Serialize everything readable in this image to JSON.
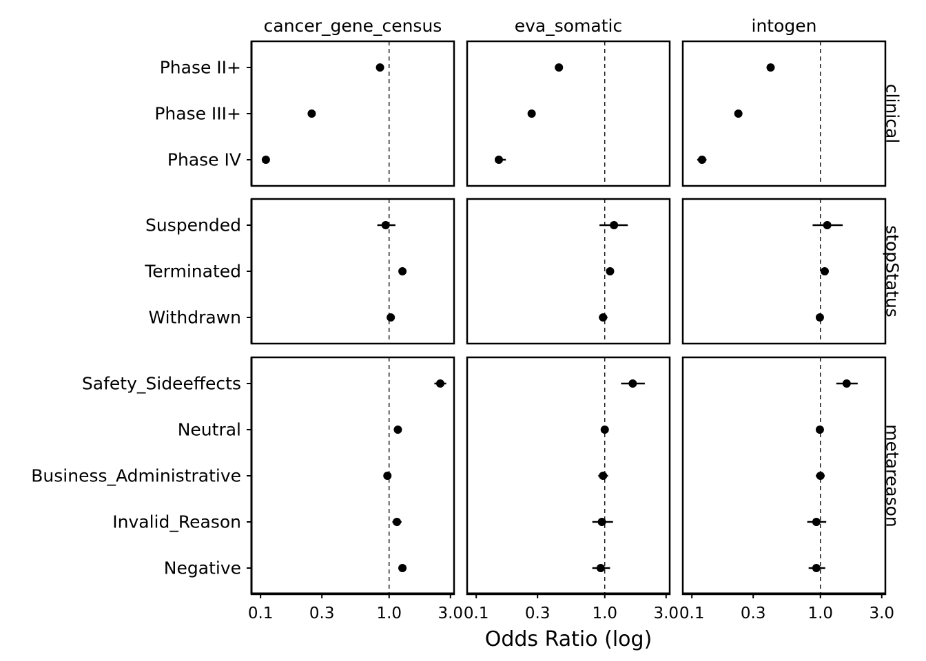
{
  "chart_data": {
    "type": "scatter",
    "subtype": "faceted forest plot (point estimate with confidence interval)",
    "xlabel": "Odds Ratio (log)",
    "x_scale": "log10",
    "xlim": [
      0.085,
      3.2
    ],
    "x_ticks": [
      0.1,
      0.3,
      1.0,
      3.0
    ],
    "x_tick_labels": [
      "0.1",
      "0.3",
      "1.0",
      "3.0"
    ],
    "reference_line": {
      "x": 1.0,
      "style": "dashed"
    },
    "grid": false,
    "point_color": "#000000",
    "columns": [
      "cancer_gene_census",
      "eva_somatic",
      "intogen"
    ],
    "rows": [
      {
        "name": "clinical",
        "categories": [
          "Phase II+",
          "Phase III+",
          "Phase IV"
        ],
        "panels": [
          {
            "column": "cancer_gene_census",
            "points": [
              {
                "category": "Phase II+",
                "or": 0.85,
                "lo": 0.85,
                "hi": 0.85
              },
              {
                "category": "Phase III+",
                "or": 0.25,
                "lo": 0.25,
                "hi": 0.25
              },
              {
                "category": "Phase IV",
                "or": 0.11,
                "lo": 0.11,
                "hi": 0.11
              }
            ]
          },
          {
            "column": "eva_somatic",
            "points": [
              {
                "category": "Phase II+",
                "or": 0.44,
                "lo": 0.44,
                "hi": 0.44
              },
              {
                "category": "Phase III+",
                "or": 0.27,
                "lo": 0.27,
                "hi": 0.27
              },
              {
                "category": "Phase IV",
                "or": 0.15,
                "lo": 0.14,
                "hi": 0.17
              }
            ]
          },
          {
            "column": "intogen",
            "points": [
              {
                "category": "Phase II+",
                "or": 0.41,
                "lo": 0.41,
                "hi": 0.41
              },
              {
                "category": "Phase III+",
                "or": 0.23,
                "lo": 0.23,
                "hi": 0.23
              },
              {
                "category": "Phase IV",
                "or": 0.12,
                "lo": 0.11,
                "hi": 0.13
              }
            ]
          }
        ]
      },
      {
        "name": "stopStatus",
        "categories": [
          "Suspended",
          "Terminated",
          "Withdrawn"
        ],
        "panels": [
          {
            "column": "cancer_gene_census",
            "points": [
              {
                "category": "Suspended",
                "or": 0.94,
                "lo": 0.81,
                "hi": 1.12
              },
              {
                "category": "Terminated",
                "or": 1.27,
                "lo": 1.27,
                "hi": 1.27
              },
              {
                "category": "Withdrawn",
                "or": 1.03,
                "lo": 1.03,
                "hi": 1.03
              }
            ]
          },
          {
            "column": "eva_somatic",
            "points": [
              {
                "category": "Suspended",
                "or": 1.18,
                "lo": 0.91,
                "hi": 1.51
              },
              {
                "category": "Terminated",
                "or": 1.1,
                "lo": 1.1,
                "hi": 1.1
              },
              {
                "category": "Withdrawn",
                "or": 0.97,
                "lo": 0.9,
                "hi": 1.05
              }
            ]
          },
          {
            "column": "intogen",
            "points": [
              {
                "category": "Suspended",
                "or": 1.13,
                "lo": 0.87,
                "hi": 1.49
              },
              {
                "category": "Terminated",
                "or": 1.08,
                "lo": 1.08,
                "hi": 1.08
              },
              {
                "category": "Withdrawn",
                "or": 0.99,
                "lo": 0.92,
                "hi": 1.06
              }
            ]
          }
        ]
      },
      {
        "name": "metareason",
        "categories": [
          "Safety_Sideeffects",
          "Neutral",
          "Business_Administrative",
          "Invalid_Reason",
          "Negative"
        ],
        "panels": [
          {
            "column": "cancer_gene_census",
            "points": [
              {
                "category": "Safety_Sideeffects",
                "or": 2.5,
                "lo": 2.25,
                "hi": 2.78
              },
              {
                "category": "Neutral",
                "or": 1.17,
                "lo": 1.17,
                "hi": 1.17
              },
              {
                "category": "Business_Administrative",
                "or": 0.97,
                "lo": 0.97,
                "hi": 0.97
              },
              {
                "category": "Invalid_Reason",
                "or": 1.15,
                "lo": 1.06,
                "hi": 1.25
              },
              {
                "category": "Negative",
                "or": 1.27,
                "lo": 1.18,
                "hi": 1.36
              }
            ]
          },
          {
            "column": "eva_somatic",
            "points": [
              {
                "category": "Safety_Sideeffects",
                "or": 1.65,
                "lo": 1.34,
                "hi": 2.05
              },
              {
                "category": "Neutral",
                "or": 1.0,
                "lo": 0.96,
                "hi": 1.04
              },
              {
                "category": "Business_Administrative",
                "or": 0.97,
                "lo": 0.89,
                "hi": 1.06
              },
              {
                "category": "Invalid_Reason",
                "or": 0.95,
                "lo": 0.8,
                "hi": 1.16
              },
              {
                "category": "Negative",
                "or": 0.93,
                "lo": 0.8,
                "hi": 1.1
              }
            ]
          },
          {
            "column": "intogen",
            "points": [
              {
                "category": "Safety_Sideeffects",
                "or": 1.6,
                "lo": 1.33,
                "hi": 1.95
              },
              {
                "category": "Neutral",
                "or": 0.99,
                "lo": 0.95,
                "hi": 1.03
              },
              {
                "category": "Business_Administrative",
                "or": 1.0,
                "lo": 0.92,
                "hi": 1.08
              },
              {
                "category": "Invalid_Reason",
                "or": 0.93,
                "lo": 0.79,
                "hi": 1.11
              },
              {
                "category": "Negative",
                "or": 0.93,
                "lo": 0.81,
                "hi": 1.09
              }
            ]
          }
        ]
      }
    ]
  }
}
